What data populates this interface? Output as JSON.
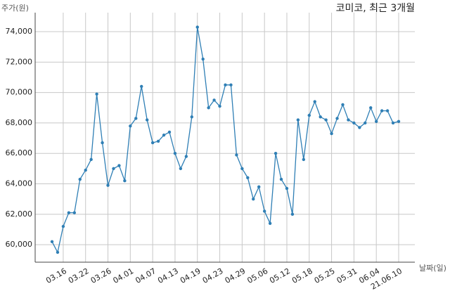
{
  "chart_data": {
    "type": "line",
    "title": "코미코, 최근 3개월",
    "y_label": "주가(원)",
    "x_label": "날짜(일)",
    "categories": [
      null,
      null,
      "03.16",
      null,
      null,
      null,
      "03.22",
      null,
      null,
      null,
      "03.26",
      null,
      null,
      null,
      "04.01",
      null,
      null,
      null,
      "04.07",
      null,
      null,
      null,
      "04.13",
      null,
      null,
      null,
      "04.19",
      null,
      null,
      null,
      "04.23",
      null,
      null,
      null,
      "04.29",
      null,
      null,
      null,
      "05.06",
      null,
      null,
      null,
      "05.12",
      null,
      null,
      null,
      "05.18",
      null,
      null,
      null,
      "05.25",
      null,
      null,
      null,
      "05.31",
      null,
      null,
      null,
      "06.04",
      null,
      null,
      null,
      "21.06.10"
    ],
    "series": [
      {
        "color": "#2f7fb5",
        "values": [
          60200,
          59500,
          61200,
          62100,
          62100,
          64300,
          64900,
          65600,
          69900,
          66700,
          63900,
          65000,
          65200,
          64200,
          67800,
          68300,
          70400,
          68200,
          66700,
          66800,
          67200,
          67400,
          66000,
          65000,
          65800,
          68400,
          74300,
          72200,
          69000,
          69500,
          69100,
          70500,
          70500,
          65900,
          65000,
          64400,
          63000,
          63800,
          62200,
          61400,
          66000,
          64300,
          63700,
          62000,
          68200,
          65600,
          68500,
          69400,
          68400,
          68200,
          67300,
          68300,
          69200,
          68200,
          68000,
          67700,
          68000,
          69000,
          68100,
          68800,
          68800,
          68000,
          68100
        ]
      }
    ],
    "ylim": [
      58850,
      75250
    ],
    "yticks": [
      {
        "value": 60000,
        "label": "60,000"
      },
      {
        "value": 62000,
        "label": "62,000"
      },
      {
        "value": 64000,
        "label": "64,000"
      },
      {
        "value": 66000,
        "label": "66,000"
      },
      {
        "value": 68000,
        "label": "68,000"
      },
      {
        "value": 70000,
        "label": "70,000"
      },
      {
        "value": 72000,
        "label": "72,000"
      },
      {
        "value": 74000,
        "label": "74,000"
      }
    ],
    "grid": true
  }
}
